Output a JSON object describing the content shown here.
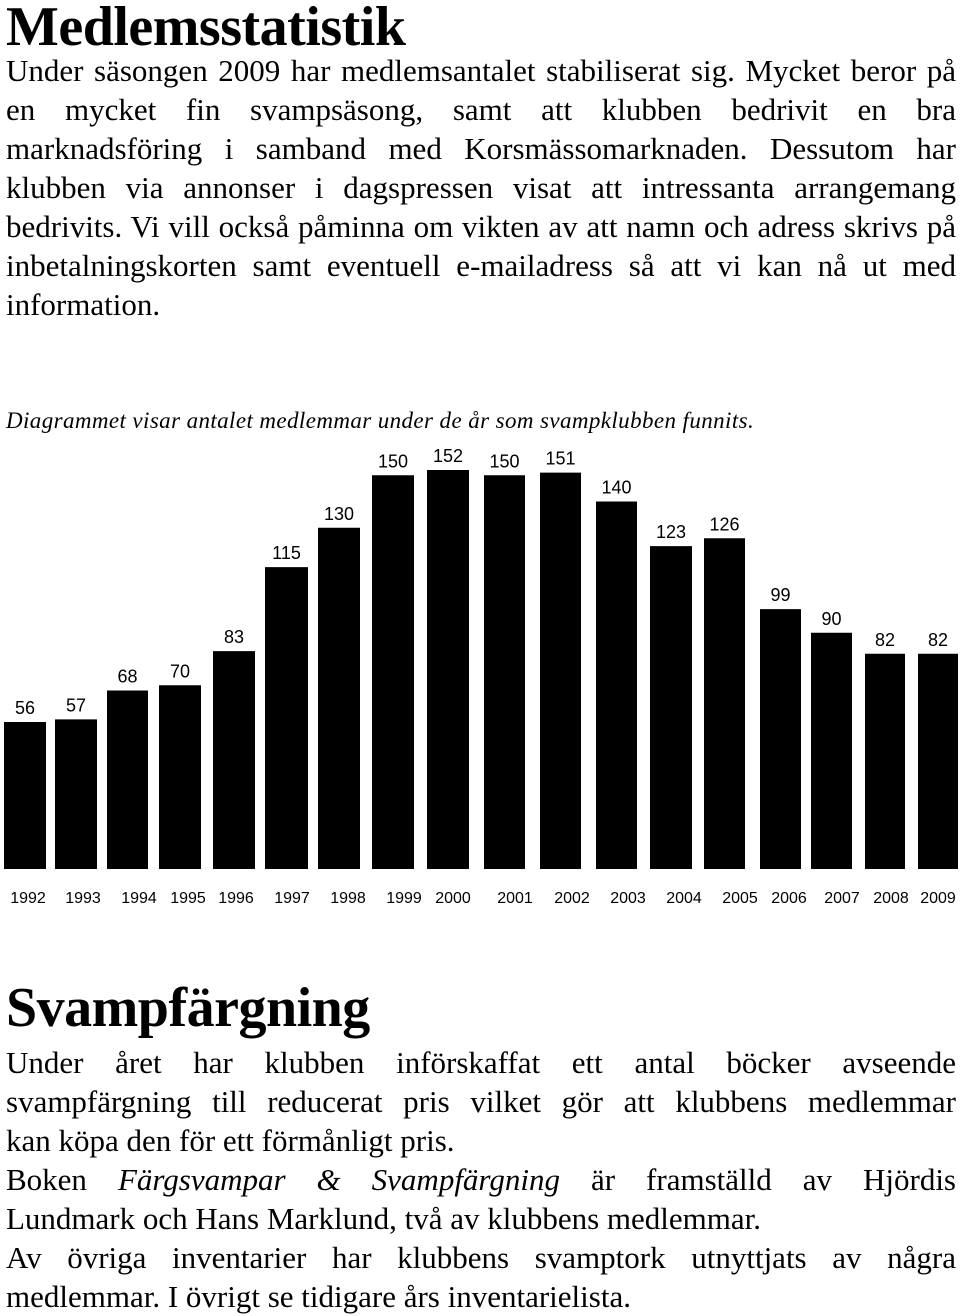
{
  "section1": {
    "title": "Medlemsstatistik",
    "paragraph": "Under säsongen 2009 har medlemsantalet stabiliserat sig. Mycket beror på en mycket fin svampsäsong, samt att klubben bedrivit en bra marknadsföring i samband med Korsmässomarknaden. Dessutom har klubben via annonser i dagspressen visat att intressanta arrangemang bedrivits. Vi vill också påminna om vikten av att namn och adress skrivs på inbetalningskorten samt eventuell e-mailadress så att vi kan nå ut med information.",
    "chart_caption": "Diagrammet visar antalet medlemmar under de år som svampklubben funnits."
  },
  "chart_data": {
    "type": "bar",
    "categories": [
      "1992",
      "1993",
      "1994",
      "1995",
      "1996",
      "1997",
      "1998",
      "1999",
      "2000",
      "2001",
      "2002",
      "2003",
      "2004",
      "2005",
      "2006",
      "2007",
      "2008",
      "2009"
    ],
    "values": [
      56,
      57,
      68,
      70,
      83,
      115,
      130,
      150,
      152,
      150,
      151,
      140,
      123,
      126,
      99,
      90,
      82,
      82
    ],
    "title": "",
    "xlabel": "",
    "ylabel": "",
    "ylim": [
      0,
      152
    ],
    "grid": false,
    "legend": "none",
    "bar_color": "#000000"
  },
  "section2": {
    "title": "Svampfärgning",
    "line1": "Under året har klubben införskaffat ett antal böcker avseende",
    "line2": "svampfärgning till reducerat pris vilket gör att klubbens medlemmar",
    "line3": "kan köpa den för ett förmånligt pris.",
    "book_prefix": "Boken ",
    "book_title": "Färgsvampar & Svampfärgning",
    "book_suffix": " är framställd av Hjördis",
    "line5": "Lundmark och Hans Marklund, två av klubbens medlemmar.",
    "line6": "Av övriga inventarier har klubbens svamptork utnyttjats av några",
    "line7": "medlemmar. I övrigt se tidigare års inventarielista."
  }
}
